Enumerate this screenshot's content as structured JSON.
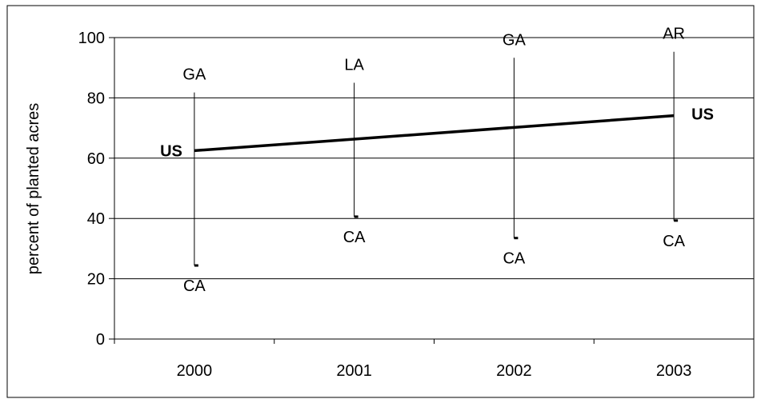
{
  "chart_data": {
    "type": "line",
    "title": "",
    "xlabel": "",
    "ylabel": "percent of planted acres",
    "categories": [
      "2000",
      "2001",
      "2002",
      "2003"
    ],
    "ylim": [
      0,
      100
    ],
    "yticks": [
      0,
      20,
      40,
      60,
      80,
      100
    ],
    "grid": true,
    "legend": "none",
    "series": [
      {
        "name": "US",
        "values": [
          62.5,
          66.3,
          70.2,
          74.1
        ],
        "start_label": "US",
        "end_label": "US"
      }
    ],
    "ranges": [
      {
        "category": "2000",
        "high": 81.8,
        "high_label": "GA",
        "low": 24.4,
        "low_label": "CA"
      },
      {
        "category": "2001",
        "high": 85.0,
        "high_label": "LA",
        "low": 40.6,
        "low_label": "CA"
      },
      {
        "category": "2002",
        "high": 93.3,
        "high_label": "GA",
        "low": 33.5,
        "low_label": "CA"
      },
      {
        "category": "2003",
        "high": 95.3,
        "high_label": "AR",
        "low": 39.3,
        "low_label": "CA"
      }
    ],
    "colors": {
      "line": "#000000",
      "grid": "#000000",
      "border": "#000000",
      "background": "#ffffff"
    }
  }
}
